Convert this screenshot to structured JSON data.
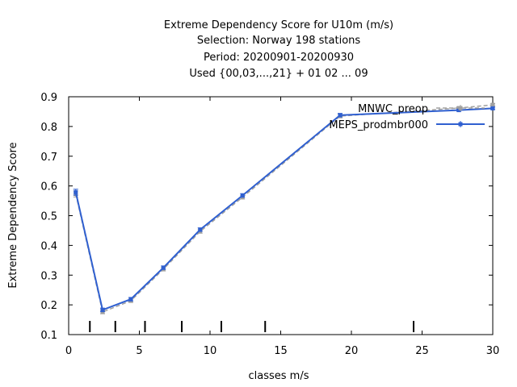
{
  "chart_data": {
    "type": "line",
    "title_lines": [
      "Extreme Dependency Score  for U10m (m/s)",
      "Selection: Norway    198 stations",
      "Period: 20200901-20200930",
      "Used {00,03,...,21} + 01 02 ... 09"
    ],
    "xlabel": "classes m/s",
    "ylabel": "Extreme Dependency Score",
    "xlim": [
      0,
      30
    ],
    "ylim": [
      0.1,
      0.9
    ],
    "xticks": [
      0,
      5,
      10,
      15,
      20,
      25,
      30
    ],
    "yticks": [
      0.1,
      0.2,
      0.3,
      0.4,
      0.5,
      0.6,
      0.7,
      0.8,
      0.9
    ],
    "grid": false,
    "legend_position": "top-right",
    "class_markers": [
      1.5,
      3.3,
      5.4,
      8.0,
      10.8,
      13.9,
      24.4
    ],
    "series": [
      {
        "name": "MNWC_preop",
        "color": "#a0a0a0",
        "dashed": true,
        "x": [
          0.5,
          2.4,
          4.4,
          6.7,
          9.3,
          12.3,
          19.2,
          27.6,
          30.0
        ],
        "y": [
          0.573,
          0.176,
          0.214,
          0.32,
          0.447,
          0.562,
          0.835,
          0.862,
          0.873
        ],
        "y_err": [
          0.01,
          0.006,
          0.006,
          0.006,
          0.006,
          0.006,
          0.006,
          0.004,
          0.004
        ]
      },
      {
        "name": "MEPS_prodmbr000",
        "color": "#3060d0",
        "dashed": false,
        "x": [
          0.5,
          2.4,
          4.4,
          6.7,
          9.3,
          12.3,
          19.2,
          27.6,
          30.0
        ],
        "y": [
          0.579,
          0.183,
          0.219,
          0.325,
          0.453,
          0.568,
          0.838,
          0.855,
          0.861
        ],
        "y_err": [
          0.01,
          0.006,
          0.006,
          0.006,
          0.006,
          0.006,
          0.006,
          0.004,
          0.004
        ]
      }
    ]
  }
}
